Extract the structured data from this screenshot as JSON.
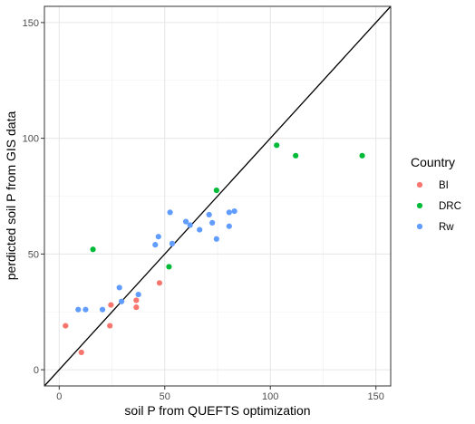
{
  "chart_data": {
    "type": "scatter",
    "title": "",
    "xlabel": "soil P from QUEFTS optimization",
    "ylabel": "perdicted soil P from GIS data",
    "xlim": [
      -7,
      157
    ],
    "ylim": [
      -7,
      157
    ],
    "xticks": [
      0,
      50,
      100,
      150
    ],
    "yticks": [
      0,
      50,
      100,
      150
    ],
    "grid": true,
    "reference_line": "y = x",
    "legend": {
      "title": "Country",
      "placement": "right"
    },
    "series": [
      {
        "name": "BI",
        "color": "#F8766D",
        "points": [
          [
            3,
            19
          ],
          [
            10.5,
            7.5
          ],
          [
            24,
            19
          ],
          [
            24.5,
            28
          ],
          [
            36.5,
            27
          ],
          [
            36.5,
            30
          ],
          [
            47.5,
            37.5
          ]
        ]
      },
      {
        "name": "DRC",
        "color": "#00BA38",
        "points": [
          [
            16,
            52
          ],
          [
            52,
            44.5
          ],
          [
            74.5,
            77.5
          ],
          [
            103,
            97
          ],
          [
            112,
            92.5
          ],
          [
            143.5,
            92.5
          ]
        ]
      },
      {
        "name": "Rw",
        "color": "#619CFF",
        "points": [
          [
            9,
            26
          ],
          [
            12.5,
            26
          ],
          [
            20.5,
            26
          ],
          [
            28.5,
            35.5
          ],
          [
            29.5,
            29.5
          ],
          [
            37.5,
            32.5
          ],
          [
            45.5,
            54
          ],
          [
            47,
            57.5
          ],
          [
            52.5,
            68
          ],
          [
            53.5,
            54.5
          ],
          [
            60,
            64
          ],
          [
            62,
            62.5
          ],
          [
            66.5,
            60.5
          ],
          [
            71,
            67
          ],
          [
            72.5,
            63.5
          ],
          [
            74.5,
            56.5
          ],
          [
            80.5,
            62
          ],
          [
            80.5,
            68
          ],
          [
            83,
            68.5
          ]
        ]
      }
    ]
  }
}
